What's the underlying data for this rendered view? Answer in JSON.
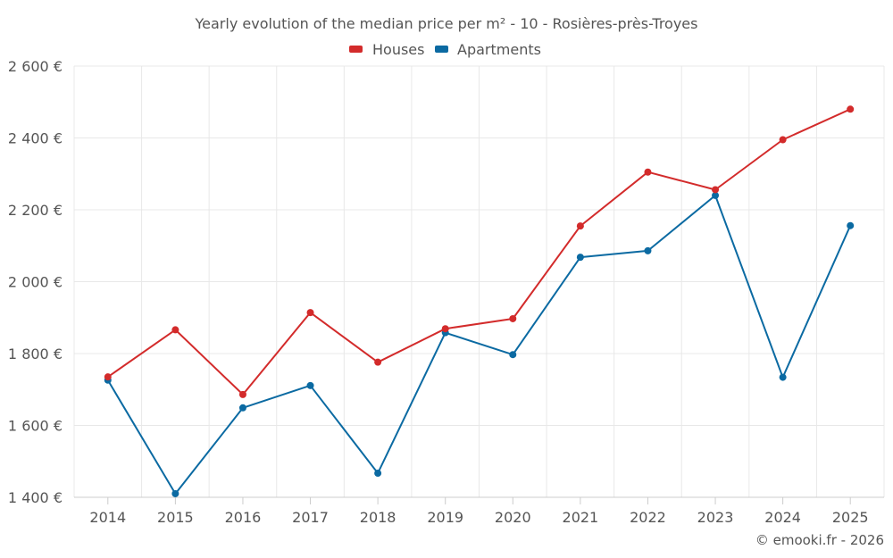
{
  "chart_data": {
    "type": "line",
    "title": "Yearly evolution of the median price per m² - 10 - Rosières-près-Troyes",
    "categories": [
      "2014",
      "2015",
      "2016",
      "2017",
      "2018",
      "2019",
      "2020",
      "2021",
      "2022",
      "2023",
      "2024",
      "2025"
    ],
    "series": [
      {
        "name": "Houses",
        "color": "#d32b2b",
        "values": [
          1735,
          1866,
          1686,
          1914,
          1776,
          1869,
          1897,
          2155,
          2305,
          2256,
          2395,
          2480
        ]
      },
      {
        "name": "Apartments",
        "color": "#0b6aa2",
        "values": [
          1726,
          1410,
          1649,
          1711,
          1467,
          1858,
          1797,
          2068,
          2086,
          2240,
          1734,
          2156
        ]
      }
    ],
    "ylim": [
      1400,
      2600
    ],
    "yticks": [
      1400,
      1600,
      1800,
      2000,
      2200,
      2400,
      2600
    ],
    "ytick_labels": [
      "1 400 €",
      "1 600 €",
      "1 800 €",
      "2 000 €",
      "2 200 €",
      "2 400 €",
      "2 600 €"
    ],
    "legend_position": "top-center",
    "grid": true,
    "xlabel": "",
    "ylabel": ""
  },
  "credit": "© emooki.fr - 2026"
}
